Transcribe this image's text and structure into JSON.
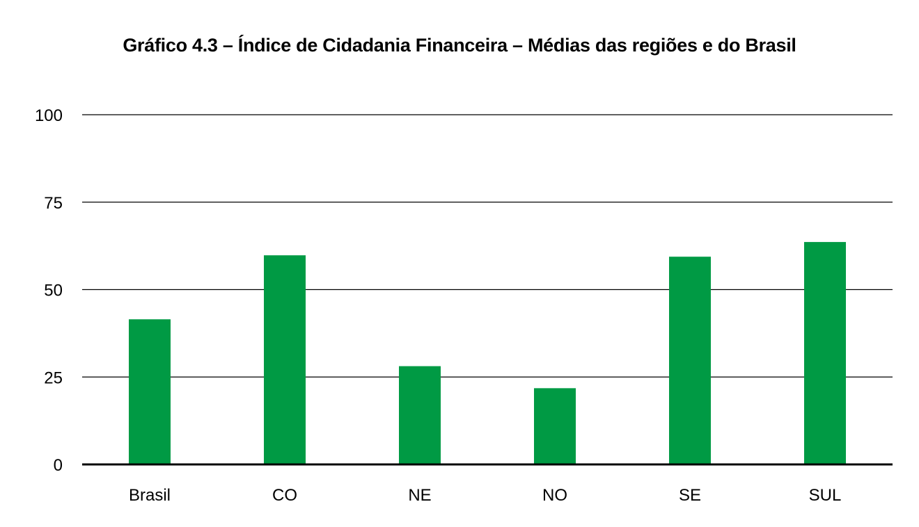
{
  "chart_data": {
    "type": "bar",
    "title": "Gráfico 4.3 – Índice de Cidadania Financeira – Médias das regiões e do Brasil",
    "xlabel": "",
    "ylabel": "",
    "categories": [
      "Brasil",
      "CO",
      "NE",
      "NO",
      "SE",
      "SUL"
    ],
    "values": [
      41.5,
      59.8,
      28.1,
      21.8,
      59.4,
      63.6
    ],
    "ylim": [
      0,
      100
    ],
    "yticks": [
      0,
      25,
      50,
      75,
      100
    ],
    "grid": true,
    "legend": "none",
    "bar_color": "#009a44"
  }
}
